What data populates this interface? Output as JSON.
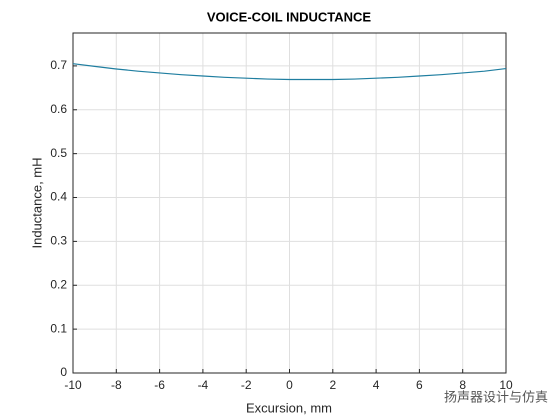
{
  "chart_data": {
    "type": "line",
    "title": "VOICE-COIL INDUCTANCE",
    "x_label": "Excursion, mm",
    "y_label": "Inductance, mH",
    "x": [
      -10,
      -9,
      -8,
      -7,
      -6,
      -5,
      -4,
      -3,
      -2,
      -1,
      0,
      1,
      2,
      3,
      4,
      5,
      6,
      7,
      8,
      9,
      10
    ],
    "series": [
      {
        "name": "Inductance",
        "color": "#1f7ea0",
        "values": [
          0.705,
          0.699,
          0.693,
          0.688,
          0.684,
          0.68,
          0.677,
          0.674,
          0.672,
          0.67,
          0.669,
          0.669,
          0.669,
          0.67,
          0.672,
          0.674,
          0.677,
          0.68,
          0.684,
          0.688,
          0.694
        ]
      }
    ],
    "xlim": [
      -10,
      10
    ],
    "xticks": [
      -10,
      -8,
      -6,
      -4,
      -2,
      0,
      2,
      4,
      6,
      8,
      10
    ],
    "ylim": [
      0,
      0.775
    ],
    "yticks": [
      0,
      0.1,
      0.2,
      0.3,
      0.4,
      0.5,
      0.6,
      0.7
    ],
    "grid": true,
    "watermark": "扬声器设计与仿真"
  }
}
